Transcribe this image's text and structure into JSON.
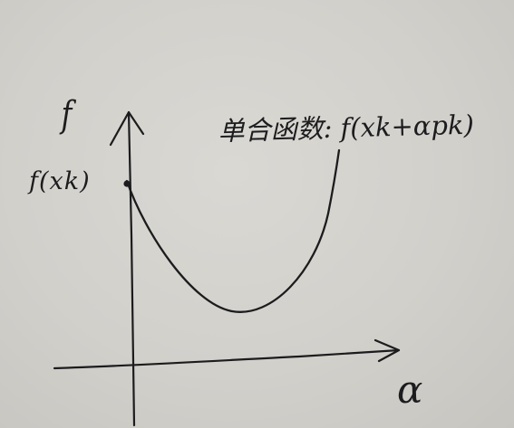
{
  "labels": {
    "y_axis": "f",
    "x_axis": "α",
    "start_value": "f(xk)",
    "function": "单合函数: f(xk+αpk)"
  },
  "ink_color": "#1c1c1e",
  "paper_color": "#d6d4cf"
}
